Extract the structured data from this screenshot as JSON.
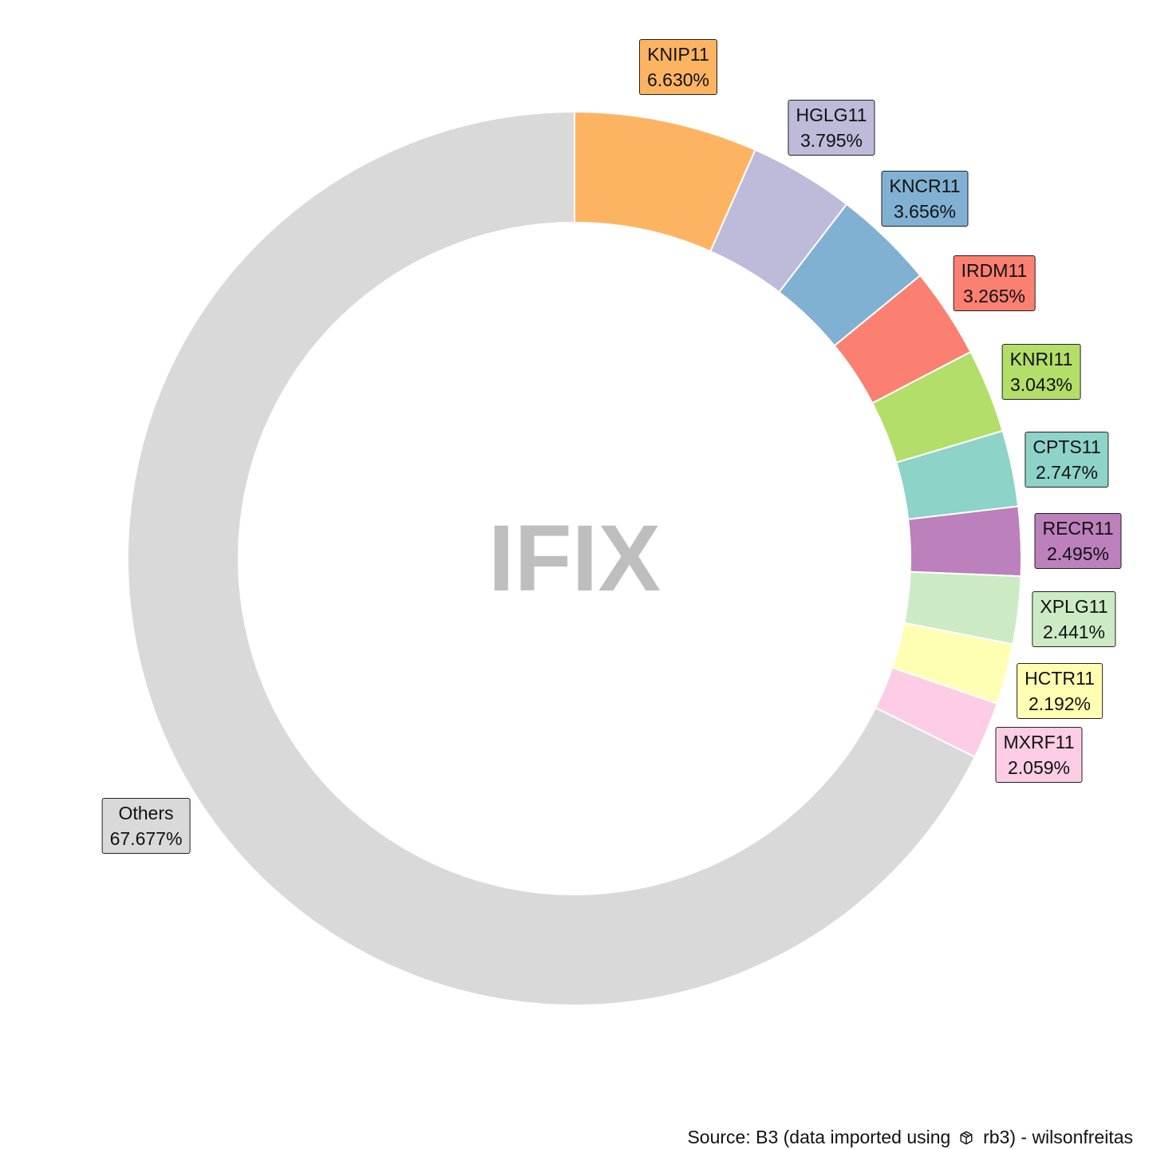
{
  "chart_data": {
    "type": "pie",
    "style": "donut",
    "center_text": "IFIX",
    "slices": [
      {
        "name": "KNIP11",
        "label": "6.630%",
        "value": 6.63,
        "color": "#FDB462"
      },
      {
        "name": "HGLG11",
        "label": "3.795%",
        "value": 3.795,
        "color": "#BEBADA"
      },
      {
        "name": "KNCR11",
        "label": "3.656%",
        "value": 3.656,
        "color": "#80B1D3"
      },
      {
        "name": "IRDM11",
        "label": "3.265%",
        "value": 3.265,
        "color": "#FB8072"
      },
      {
        "name": "KNRI11",
        "label": "3.043%",
        "value": 3.043,
        "color": "#B3DE69"
      },
      {
        "name": "CPTS11",
        "label": "2.747%",
        "value": 2.747,
        "color": "#8DD3C7"
      },
      {
        "name": "RECR11",
        "label": "2.495%",
        "value": 2.495,
        "color": "#BC80BD"
      },
      {
        "name": "XPLG11",
        "label": "2.441%",
        "value": 2.441,
        "color": "#CCEBC5"
      },
      {
        "name": "HCTR11",
        "label": "2.192%",
        "value": 2.192,
        "color": "#FFFFB3"
      },
      {
        "name": "MXRF11",
        "label": "2.059%",
        "value": 2.059,
        "color": "#FCCDE5"
      },
      {
        "name": "Others",
        "label": "67.677%",
        "value": 67.677,
        "color": "#D9D9D9"
      }
    ]
  },
  "caption": {
    "prefix": "Source: B3 (data imported using",
    "package_icon": "package-icon",
    "suffix": "rb3) - wilsonfreitas"
  }
}
